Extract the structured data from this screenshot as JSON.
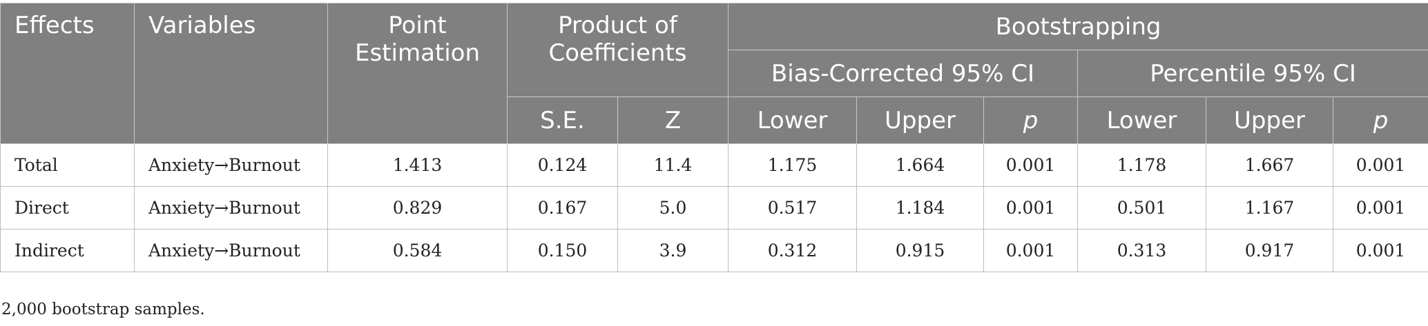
{
  "table": {
    "headers": {
      "effects": "Effects",
      "variables": "Variables",
      "point_estimation": "Point Estimation",
      "product_of_coefficients": "Product of Coefficients",
      "bootstrapping": "Bootstrapping",
      "bias_corrected": "Bias-Corrected 95% CI",
      "percentile": "Percentile 95% CI",
      "se": "S.E.",
      "z": "Z",
      "bc_lower": "Lower",
      "bc_upper": "Upper",
      "bc_p": "p",
      "pc_lower": "Lower",
      "pc_upper": "Upper",
      "pc_p": "p"
    },
    "rows": [
      {
        "effect": "Total",
        "variables": "Anxiety→Burnout",
        "point": "1.413",
        "se": "0.124",
        "z": "11.4",
        "bc_lower": "1.175",
        "bc_upper": "1.664",
        "bc_p": "0.001",
        "pc_lower": "1.178",
        "pc_upper": "1.667",
        "pc_p": "0.001"
      },
      {
        "effect": "Direct",
        "variables": "Anxiety→Burnout",
        "point": "0.829",
        "se": "0.167",
        "z": "5.0",
        "bc_lower": "0.517",
        "bc_upper": "1.184",
        "bc_p": "0.001",
        "pc_lower": "0.501",
        "pc_upper": "1.167",
        "pc_p": "0.001"
      },
      {
        "effect": "Indirect",
        "variables": "Anxiety→Burnout",
        "point": "0.584",
        "se": "0.150",
        "z": "3.9",
        "bc_lower": "0.312",
        "bc_upper": "0.915",
        "bc_p": "0.001",
        "pc_lower": "0.313",
        "pc_upper": "0.917",
        "pc_p": "0.001"
      }
    ]
  },
  "footnote": "2,000 bootstrap samples."
}
